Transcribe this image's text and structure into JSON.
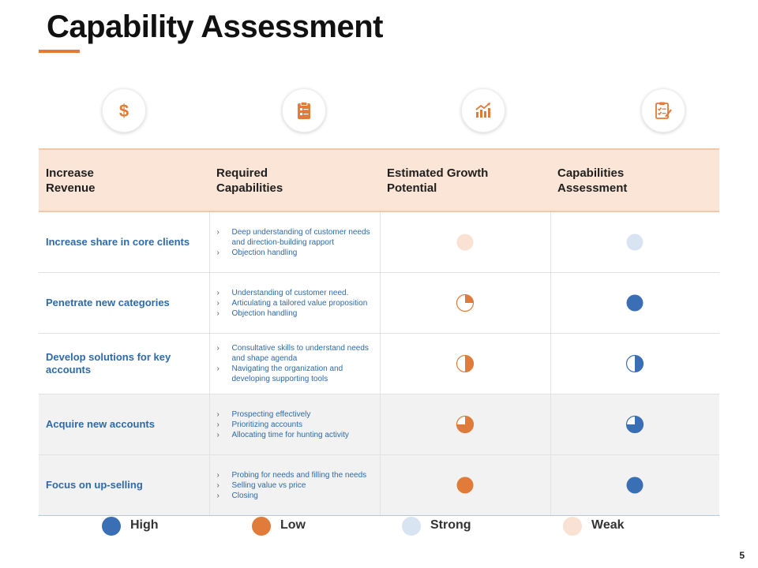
{
  "title": "Capability Assessment",
  "page_number": "5",
  "colors": {
    "accent": "#e07b3a",
    "high": "#3a6fb6",
    "low": "#e07b3a",
    "strong": "#d9e4f2",
    "weak": "#f9e2d3"
  },
  "icons": [
    "dollar-icon",
    "clipboard-list-icon",
    "bar-chart-growth-icon",
    "checklist-pencil-icon"
  ],
  "headers": [
    "Increase Revenue",
    "Required Capabilities",
    "Estimated Growth Potential",
    "Capabilities Assessment"
  ],
  "rows": [
    {
      "objective": "Increase share in core clients",
      "capabilities": [
        "Deep understanding of customer needs and direction-building rapport",
        "Objection handling"
      ],
      "growth": {
        "color": "weak",
        "fill": 1
      },
      "assessment": {
        "color": "strong",
        "fill": 1
      }
    },
    {
      "objective": "Penetrate new categories",
      "capabilities": [
        "Understanding of customer need.",
        "Articulating a tailored value proposition",
        "Objection handling"
      ],
      "growth": {
        "color": "low",
        "fill": 0.25
      },
      "assessment": {
        "color": "high",
        "fill": 1
      }
    },
    {
      "objective": "Develop solutions for key accounts",
      "capabilities": [
        "Consultative skills to understand needs and shape agenda",
        "Navigating the organization and developing supporting tools"
      ],
      "growth": {
        "color": "low",
        "fill": 0.5
      },
      "assessment": {
        "color": "high",
        "fill": 0.5
      }
    },
    {
      "objective": "Acquire new accounts",
      "capabilities": [
        "Prospecting effectively",
        "Prioritizing accounts",
        "Allocating time  for hunting activity"
      ],
      "growth": {
        "color": "low",
        "fill": 0.75
      },
      "assessment": {
        "color": "high",
        "fill": 0.75
      }
    },
    {
      "objective": "Focus on up-selling",
      "capabilities": [
        "Probing  for needs and filling the needs",
        "Selling value vs price",
        "Closing"
      ],
      "growth": {
        "color": "low",
        "fill": 1
      },
      "assessment": {
        "color": "high",
        "fill": 1
      }
    }
  ],
  "legend": [
    {
      "label": "High",
      "color": "high"
    },
    {
      "label": "Low",
      "color": "low"
    },
    {
      "label": "Strong",
      "color": "strong"
    },
    {
      "label": "Weak",
      "color": "weak"
    }
  ]
}
